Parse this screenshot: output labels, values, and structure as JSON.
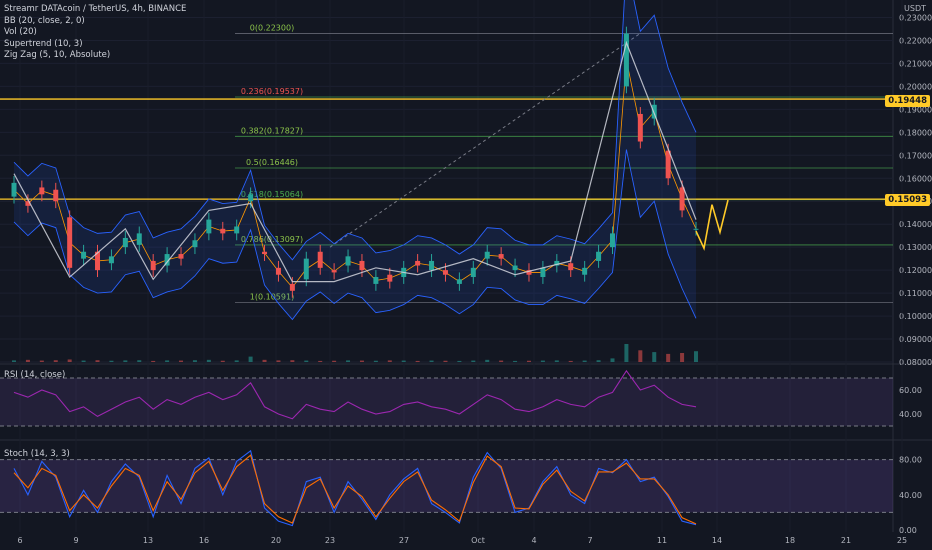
{
  "header": {
    "title": "Streamr DATAcoin / TetherUS, 4h, BINANCE",
    "indicators": [
      "BB (20, close, 2, 0)",
      "Vol (20)",
      "Supertrend (10, 3)",
      "Zig Zag (5, 10, Absolute)"
    ],
    "unit": "USDT"
  },
  "panes": {
    "rsi_label": "RSI (14, close)",
    "stoch_label": "Stoch (14, 3, 3)"
  },
  "tags": {
    "upper": "0.19448",
    "middle": "0.15093"
  },
  "colors": {
    "background": "#131722",
    "bull": "#26a69a",
    "bear": "#ef5350",
    "bb": "#2962ff",
    "yellow": "#ffca28",
    "rsi": "#9c27b0",
    "stoch_k": "#2962ff",
    "stoch_d": "#ff6d00",
    "fib": "#4caf50"
  },
  "chart_data": [
    {
      "type": "candlestick",
      "title": "Streamr DATAcoin / TetherUS, 4h, BINANCE",
      "ylabel": "USDT",
      "ylim": [
        0.08,
        0.235
      ],
      "x_ticks": [
        "6",
        "9",
        "13",
        "16",
        "20",
        "23",
        "27",
        "Oct",
        "4",
        "7",
        "11",
        "14",
        "18",
        "21",
        "25"
      ],
      "y_ticks": [
        "0.08000",
        "0.09000",
        "0.10000",
        "0.11000",
        "0.12000",
        "0.13000",
        "0.14000",
        "0.15000",
        "0.16000",
        "0.17000",
        "0.18000",
        "0.19000",
        "0.20000",
        "0.21000",
        "0.22000",
        "0.23000"
      ],
      "fibonacci": [
        {
          "label": "0(0.22300)",
          "value": 0.223
        },
        {
          "label": "0.236(0.19537)",
          "value": 0.19537
        },
        {
          "label": "0.382(0.17827)",
          "value": 0.17827
        },
        {
          "label": "0.5(0.16446)",
          "value": 0.16446
        },
        {
          "label": "0.618(0.15064)",
          "value": 0.15064
        },
        {
          "label": "0.786(0.13097)",
          "value": 0.13097
        },
        {
          "label": "1(0.10591)",
          "value": 0.10591
        }
      ],
      "horizontal_levels": [
        0.19448,
        0.15093
      ],
      "price_path": [
        [
          0.152,
          0.158
        ],
        [
          0.15,
          0.148
        ],
        [
          0.156,
          0.153
        ],
        [
          0.155,
          0.15
        ],
        [
          0.143,
          0.121
        ],
        [
          0.125,
          0.128
        ],
        [
          0.128,
          0.12
        ],
        [
          0.123,
          0.126
        ],
        [
          0.13,
          0.134
        ],
        [
          0.131,
          0.136
        ],
        [
          0.124,
          0.12
        ],
        [
          0.122,
          0.127
        ],
        [
          0.127,
          0.125
        ],
        [
          0.13,
          0.133
        ],
        [
          0.136,
          0.142
        ],
        [
          0.138,
          0.136
        ],
        [
          0.136,
          0.139
        ],
        [
          0.15,
          0.153
        ],
        [
          0.128,
          0.127
        ],
        [
          0.121,
          0.118
        ],
        [
          0.114,
          0.111
        ],
        [
          0.116,
          0.125
        ],
        [
          0.128,
          0.121
        ],
        [
          0.12,
          0.119
        ],
        [
          0.122,
          0.126
        ],
        [
          0.124,
          0.12
        ],
        [
          0.114,
          0.117
        ],
        [
          0.118,
          0.115
        ],
        [
          0.117,
          0.121
        ],
        [
          0.124,
          0.122
        ],
        [
          0.12,
          0.124
        ],
        [
          0.12,
          0.118
        ],
        [
          0.114,
          0.116
        ],
        [
          0.117,
          0.121
        ],
        [
          0.125,
          0.128
        ],
        [
          0.127,
          0.125
        ],
        [
          0.12,
          0.122
        ],
        [
          0.12,
          0.118
        ],
        [
          0.117,
          0.121
        ],
        [
          0.122,
          0.124
        ],
        [
          0.123,
          0.12
        ],
        [
          0.118,
          0.121
        ],
        [
          0.124,
          0.128
        ],
        [
          0.13,
          0.136
        ],
        [
          0.2,
          0.223
        ],
        [
          0.188,
          0.176
        ],
        [
          0.186,
          0.192
        ],
        [
          0.172,
          0.16
        ],
        [
          0.156,
          0.146
        ],
        [
          0.138,
          0.138
        ]
      ],
      "projection": [
        0.137,
        0.1295,
        0.1485,
        0.1365,
        0.1505
      ],
      "volume": [
        0.09,
        0.12,
        0.08,
        0.1,
        0.14,
        0.08,
        0.1,
        0.07,
        0.09,
        0.1,
        0.06,
        0.09,
        0.08,
        0.1,
        0.12,
        0.07,
        0.09,
        0.3,
        0.12,
        0.09,
        0.1,
        0.08,
        0.06,
        0.07,
        0.09,
        0.08,
        0.07,
        0.09,
        0.08,
        0.06,
        0.08,
        0.07,
        0.06,
        0.08,
        0.12,
        0.08,
        0.06,
        0.07,
        0.08,
        0.09,
        0.06,
        0.08,
        0.1,
        0.2,
        1.0,
        0.65,
        0.55,
        0.45,
        0.5,
        0.6
      ]
    },
    {
      "type": "line",
      "title": "RSI (14, close)",
      "ylim": [
        20,
        80
      ],
      "y_ticks": [
        "40.00",
        "60.00"
      ],
      "bands": [
        30,
        70
      ],
      "series": [
        {
          "values": [
            58,
            54,
            60,
            56,
            42,
            46,
            38,
            44,
            50,
            54,
            44,
            52,
            48,
            54,
            58,
            52,
            56,
            66,
            46,
            40,
            36,
            48,
            44,
            42,
            50,
            44,
            40,
            42,
            48,
            50,
            46,
            44,
            40,
            48,
            56,
            52,
            44,
            42,
            46,
            52,
            48,
            46,
            54,
            58,
            76,
            60,
            64,
            54,
            48,
            46
          ]
        }
      ]
    },
    {
      "type": "line",
      "title": "Stoch (14, 3, 3)",
      "ylim": [
        0,
        100
      ],
      "y_ticks": [
        "0.00",
        "40.00",
        "80.00"
      ],
      "bands": [
        20,
        80
      ],
      "series": [
        {
          "values": [
            70,
            40,
            78,
            60,
            15,
            45,
            20,
            55,
            75,
            60,
            15,
            62,
            30,
            70,
            82,
            40,
            78,
            90,
            25,
            10,
            5,
            55,
            60,
            20,
            55,
            35,
            12,
            40,
            58,
            70,
            30,
            20,
            8,
            60,
            88,
            70,
            20,
            25,
            55,
            72,
            40,
            30,
            70,
            65,
            80,
            55,
            60,
            38,
            10,
            6
          ]
        },
        {
          "values": [
            65,
            48,
            70,
            62,
            22,
            40,
            25,
            50,
            70,
            62,
            22,
            55,
            35,
            65,
            78,
            45,
            72,
            85,
            30,
            15,
            8,
            48,
            58,
            25,
            50,
            38,
            15,
            36,
            55,
            66,
            34,
            23,
            10,
            54,
            84,
            72,
            25,
            24,
            52,
            68,
            44,
            33,
            66,
            66,
            76,
            58,
            58,
            40,
            14,
            7
          ]
        }
      ]
    }
  ]
}
